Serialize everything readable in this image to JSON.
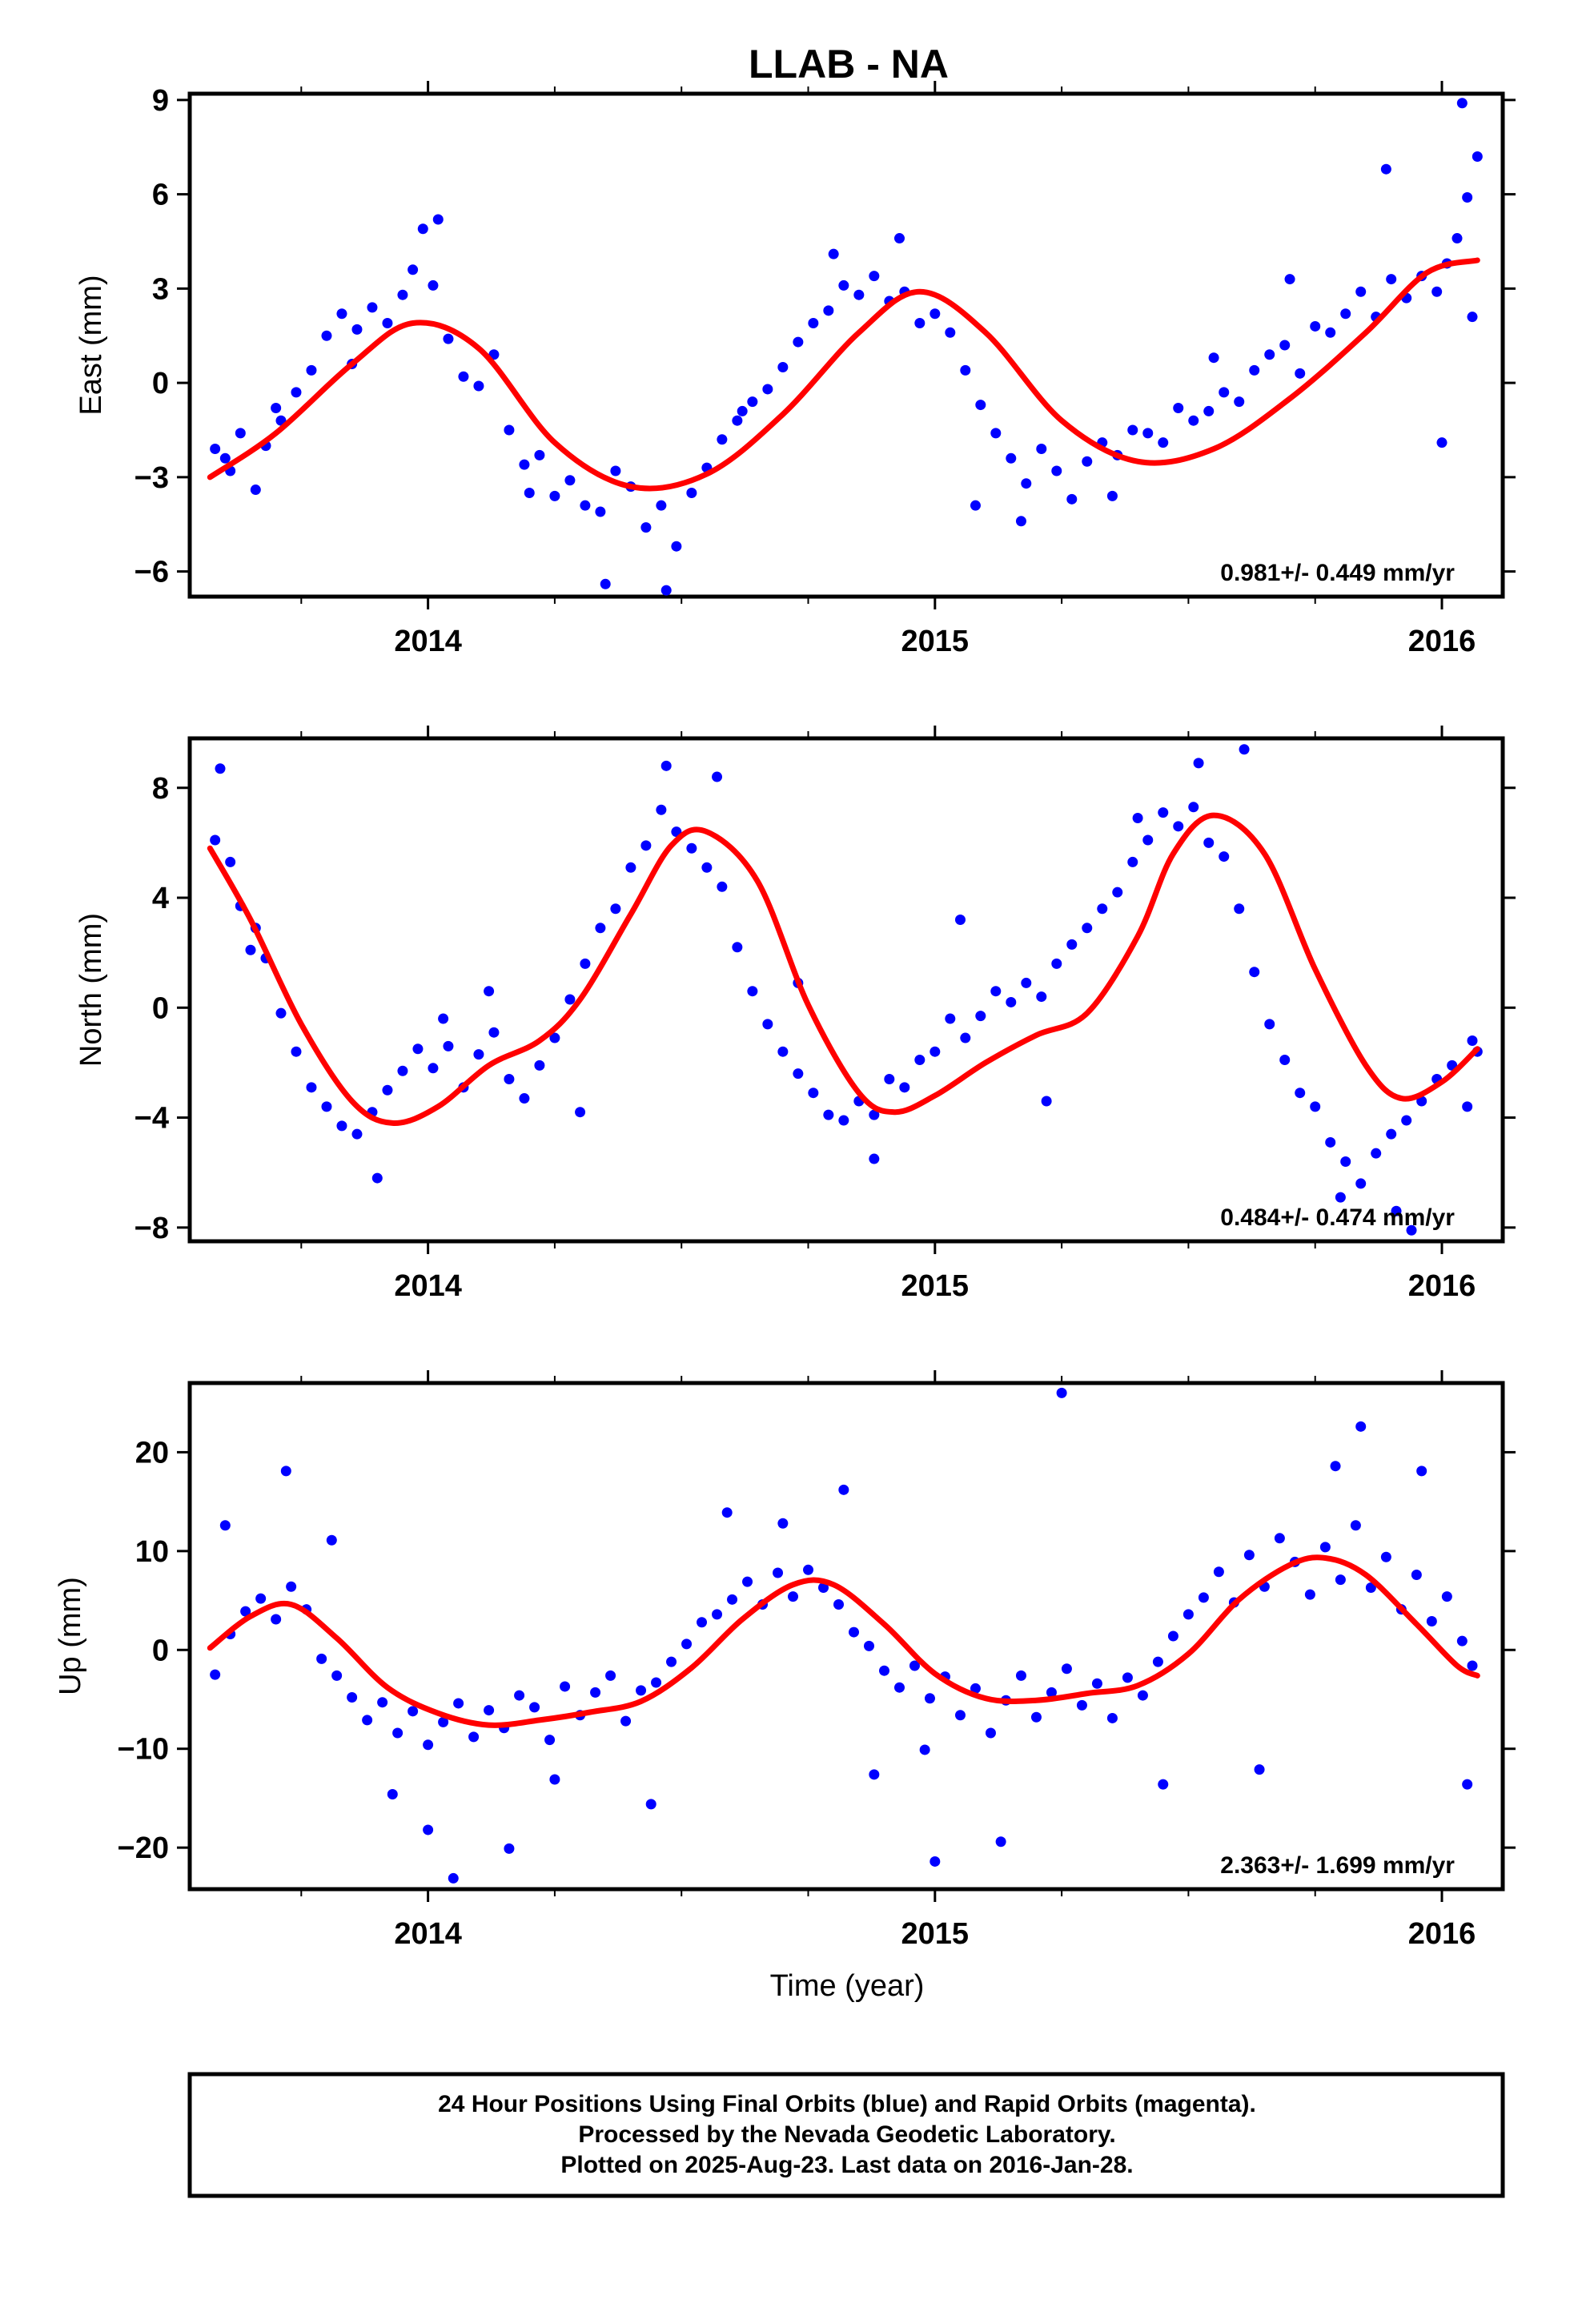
{
  "title": "LLAB - NA",
  "x_axis_label": "Time (year)",
  "footer": {
    "lines": [
      "24 Hour Positions Using Final Orbits (blue) and Rapid Orbits (magenta).",
      "Processed by the Nevada Geodetic Laboratory.",
      "Plotted on 2025-Aug-23. Last data on 2016-Jan-28."
    ]
  },
  "colors": {
    "points": "#0000ff",
    "fit": "#ff0000",
    "frame": "#000000"
  },
  "chart_data": [
    {
      "type": "scatter",
      "ylabel": "East (mm)",
      "xlim": [
        2013.53,
        2016.12
      ],
      "ylim": [
        -6.8,
        9.2
      ],
      "x_ticks": [
        2014,
        2015,
        2016
      ],
      "x_tick_labels": [
        "2014",
        "2015",
        "2016"
      ],
      "y_ticks": [
        -6,
        -3,
        0,
        3,
        6,
        9
      ],
      "y_tick_labels": [
        "−6",
        "−3",
        "0",
        "3",
        "6",
        "9"
      ],
      "rate_label": "0.981+/- 0.449 mm/yr",
      "series": [
        {
          "role": "points",
          "x": [
            2013.58,
            2013.61,
            2013.63,
            2013.66,
            2013.68,
            2013.71,
            2013.74,
            2013.77,
            2013.8,
            2013.83,
            2013.86,
            2013.89,
            2013.92,
            2013.95,
            2013.97,
            2013.99,
            2014.01,
            2014.04,
            2014.07,
            2014.1,
            2014.13,
            2014.16,
            2014.19,
            2014.22,
            2014.25,
            2014.28,
            2014.31,
            2014.34,
            2014.37,
            2014.4,
            2014.43,
            2014.46,
            2014.49,
            2014.52,
            2014.55,
            2014.58,
            2014.61,
            2014.64,
            2014.67,
            2014.7,
            2014.73,
            2014.76,
            2014.79,
            2014.82,
            2014.85,
            2014.88,
            2014.91,
            2014.94,
            2014.97,
            2015.0,
            2015.03,
            2015.06,
            2015.09,
            2015.12,
            2015.15,
            2015.18,
            2015.21,
            2015.24,
            2015.27,
            2015.3,
            2015.33,
            2015.36,
            2015.39,
            2015.42,
            2015.45,
            2015.48,
            2015.51,
            2015.54,
            2015.57,
            2015.6,
            2015.63,
            2015.66,
            2015.69,
            2015.72,
            2015.75,
            2015.78,
            2015.81,
            2015.84,
            2015.87,
            2015.9,
            2015.93,
            2015.96,
            2015.99,
            2016.01,
            2016.03,
            2016.05,
            2016.07,
            2013.6,
            2013.7,
            2013.85,
            2014.02,
            2014.2,
            2014.35,
            2014.47,
            2014.62,
            2014.8,
            2014.93,
            2015.08,
            2015.17,
            2015.35,
            2015.55,
            2015.7,
            2015.89,
            2016.0,
            2016.04,
            2016.06
          ],
          "y": [
            -2.1,
            -2.8,
            -1.6,
            -3.4,
            -2.0,
            -1.2,
            -0.3,
            0.4,
            1.5,
            2.2,
            1.7,
            2.4,
            1.9,
            2.8,
            3.6,
            4.9,
            3.1,
            1.4,
            0.2,
            -0.1,
            0.9,
            -1.5,
            -2.6,
            -2.3,
            -3.6,
            -3.1,
            -3.9,
            -4.1,
            -2.8,
            -3.3,
            -4.6,
            -3.9,
            -5.2,
            -3.5,
            -2.7,
            -1.8,
            -1.2,
            -0.6,
            -0.2,
            0.5,
            1.3,
            1.9,
            2.3,
            3.1,
            2.8,
            3.4,
            2.6,
            2.9,
            1.9,
            2.2,
            1.6,
            0.4,
            -0.7,
            -1.6,
            -2.4,
            -3.2,
            -2.1,
            -2.8,
            -3.7,
            -2.5,
            -1.9,
            -2.3,
            -1.5,
            -1.6,
            -1.9,
            -0.8,
            -1.2,
            -0.9,
            -0.3,
            -0.6,
            0.4,
            0.9,
            1.2,
            0.3,
            1.8,
            1.6,
            2.2,
            2.9,
            2.1,
            3.3,
            2.7,
            3.4,
            2.9,
            3.8,
            4.6,
            5.9,
            7.2,
            -2.4,
            -0.8,
            0.6,
            5.2,
            -3.5,
            -6.4,
            -6.6,
            -0.9,
            4.1,
            4.6,
            -3.9,
            -4.4,
            -3.6,
            0.8,
            3.3,
            6.8,
            -1.9,
            8.9,
            2.1
          ]
        },
        {
          "role": "fit",
          "x": [
            2013.57,
            2013.7,
            2013.85,
            2013.97,
            2014.1,
            2014.25,
            2014.4,
            2014.55,
            2014.7,
            2014.85,
            2014.97,
            2015.1,
            2015.25,
            2015.4,
            2015.55,
            2015.7,
            2015.85,
            2015.97,
            2016.07
          ],
          "y": [
            -3.0,
            -1.6,
            0.6,
            1.9,
            1.1,
            -1.9,
            -3.3,
            -2.9,
            -1.0,
            1.6,
            2.9,
            1.6,
            -1.2,
            -2.5,
            -2.1,
            -0.5,
            1.6,
            3.5,
            3.9
          ]
        }
      ]
    },
    {
      "type": "scatter",
      "ylabel": "North (mm)",
      "xlim": [
        2013.53,
        2016.12
      ],
      "ylim": [
        -8.5,
        9.8
      ],
      "x_ticks": [
        2014,
        2015,
        2016
      ],
      "x_tick_labels": [
        "2014",
        "2015",
        "2016"
      ],
      "y_ticks": [
        -8,
        -4,
        0,
        4,
        8
      ],
      "y_tick_labels": [
        "−8",
        "−4",
        "0",
        "4",
        "8"
      ],
      "rate_label": "0.484+/- 0.474 mm/yr",
      "series": [
        {
          "role": "points",
          "x": [
            2013.58,
            2013.61,
            2013.63,
            2013.66,
            2013.68,
            2013.71,
            2013.74,
            2013.77,
            2013.8,
            2013.83,
            2013.86,
            2013.89,
            2013.92,
            2013.95,
            2013.98,
            2014.01,
            2014.04,
            2014.07,
            2014.1,
            2014.13,
            2014.16,
            2014.19,
            2014.22,
            2014.25,
            2014.28,
            2014.31,
            2014.34,
            2014.37,
            2014.4,
            2014.43,
            2014.46,
            2014.49,
            2014.52,
            2014.55,
            2014.58,
            2014.61,
            2014.64,
            2014.67,
            2014.7,
            2014.73,
            2014.76,
            2014.79,
            2014.82,
            2014.85,
            2014.88,
            2014.91,
            2014.94,
            2014.97,
            2015.0,
            2015.03,
            2015.06,
            2015.09,
            2015.12,
            2015.15,
            2015.18,
            2015.21,
            2015.24,
            2015.27,
            2015.3,
            2015.33,
            2015.36,
            2015.39,
            2015.42,
            2015.45,
            2015.48,
            2015.51,
            2015.54,
            2015.57,
            2015.6,
            2015.63,
            2015.66,
            2015.69,
            2015.72,
            2015.75,
            2015.78,
            2015.81,
            2015.84,
            2015.87,
            2015.9,
            2015.93,
            2015.96,
            2015.99,
            2016.02,
            2016.05,
            2016.07,
            2013.59,
            2013.65,
            2013.9,
            2014.03,
            2014.12,
            2014.3,
            2014.47,
            2014.57,
            2014.73,
            2014.88,
            2015.05,
            2015.22,
            2015.4,
            2015.52,
            2015.61,
            2015.8,
            2015.91,
            2015.94,
            2016.06
          ],
          "y": [
            6.1,
            5.3,
            3.7,
            2.9,
            1.8,
            -0.2,
            -1.6,
            -2.9,
            -3.6,
            -4.3,
            -4.6,
            -3.8,
            -3.0,
            -2.3,
            -1.5,
            -2.2,
            -1.4,
            -2.9,
            -1.7,
            -0.9,
            -2.6,
            -3.3,
            -2.1,
            -1.1,
            0.3,
            1.6,
            2.9,
            3.6,
            5.1,
            5.9,
            7.2,
            6.4,
            5.8,
            5.1,
            4.4,
            2.2,
            0.6,
            -0.6,
            -1.6,
            -2.4,
            -3.1,
            -3.9,
            -4.1,
            -3.4,
            -3.9,
            -2.6,
            -2.9,
            -1.9,
            -1.6,
            -0.4,
            -1.1,
            -0.3,
            0.6,
            0.2,
            0.9,
            0.4,
            1.6,
            2.3,
            2.9,
            3.6,
            4.2,
            5.3,
            6.1,
            7.1,
            6.6,
            7.3,
            6.0,
            5.5,
            3.6,
            1.3,
            -0.6,
            -1.9,
            -3.1,
            -3.6,
            -4.9,
            -5.6,
            -6.4,
            -5.3,
            -4.6,
            -4.1,
            -3.4,
            -2.6,
            -2.1,
            -3.6,
            -1.6,
            8.7,
            2.1,
            -6.2,
            -0.4,
            0.6,
            -3.8,
            8.8,
            8.4,
            0.9,
            -5.5,
            3.2,
            -3.4,
            6.9,
            8.9,
            9.4,
            -6.9,
            -7.4,
            -8.1,
            -1.2
          ]
        },
        {
          "role": "fit",
          "x": [
            2013.57,
            2013.65,
            2013.75,
            2013.85,
            2013.93,
            2014.02,
            2014.12,
            2014.22,
            2014.3,
            2014.4,
            2014.48,
            2014.55,
            2014.65,
            2014.75,
            2014.85,
            2014.92,
            2015.0,
            2015.1,
            2015.2,
            2015.3,
            2015.4,
            2015.47,
            2015.55,
            2015.65,
            2015.75,
            2015.85,
            2015.92,
            2016.0,
            2016.07
          ],
          "y": [
            5.8,
            3.2,
            -0.6,
            -3.4,
            -4.2,
            -3.6,
            -2.1,
            -1.2,
            0.3,
            3.4,
            5.9,
            6.4,
            4.6,
            0.1,
            -3.1,
            -3.8,
            -3.2,
            -2.0,
            -1.0,
            -0.2,
            2.6,
            5.6,
            7.0,
            5.6,
            1.4,
            -2.1,
            -3.3,
            -2.7,
            -1.5
          ]
        }
      ]
    },
    {
      "type": "scatter",
      "ylabel": "Up (mm)",
      "xlim": [
        2013.53,
        2016.12
      ],
      "ylim": [
        -24.2,
        27.0
      ],
      "x_ticks": [
        2014,
        2015,
        2016
      ],
      "x_tick_labels": [
        "2014",
        "2015",
        "2016"
      ],
      "y_ticks": [
        -20,
        -10,
        0,
        10,
        20
      ],
      "y_tick_labels": [
        "−20",
        "−10",
        "0",
        "10",
        "20"
      ],
      "rate_label": "2.363+/- 1.699 mm/yr",
      "series": [
        {
          "role": "points",
          "x": [
            2013.58,
            2013.61,
            2013.64,
            2013.67,
            2013.7,
            2013.73,
            2013.76,
            2013.79,
            2013.82,
            2013.85,
            2013.88,
            2013.91,
            2013.94,
            2013.97,
            2014.0,
            2014.03,
            2014.06,
            2014.09,
            2014.12,
            2014.15,
            2014.18,
            2014.21,
            2014.24,
            2014.27,
            2014.3,
            2014.33,
            2014.36,
            2014.39,
            2014.42,
            2014.45,
            2014.48,
            2014.51,
            2014.54,
            2014.57,
            2014.6,
            2014.63,
            2014.66,
            2014.69,
            2014.72,
            2014.75,
            2014.78,
            2014.81,
            2014.84,
            2014.87,
            2014.9,
            2014.93,
            2014.96,
            2014.99,
            2015.02,
            2015.05,
            2015.08,
            2015.11,
            2015.14,
            2015.17,
            2015.2,
            2015.23,
            2015.26,
            2015.29,
            2015.32,
            2015.35,
            2015.38,
            2015.41,
            2015.44,
            2015.47,
            2015.5,
            2015.53,
            2015.56,
            2015.59,
            2015.62,
            2015.65,
            2015.68,
            2015.71,
            2015.74,
            2015.77,
            2015.8,
            2015.83,
            2015.86,
            2015.89,
            2015.92,
            2015.95,
            2015.98,
            2016.01,
            2016.04,
            2016.06,
            2013.6,
            2013.72,
            2013.81,
            2013.93,
            2014.0,
            2014.05,
            2014.16,
            2014.25,
            2014.44,
            2014.59,
            2014.7,
            2014.82,
            2014.88,
            2014.98,
            2015.0,
            2015.13,
            2015.25,
            2015.45,
            2015.64,
            2015.79,
            2015.84,
            2015.96,
            2016.05
          ],
          "y": [
            -2.5,
            1.6,
            3.9,
            5.2,
            3.1,
            6.4,
            4.1,
            -0.9,
            -2.6,
            -4.8,
            -7.1,
            -5.3,
            -8.4,
            -6.2,
            -9.6,
            -7.3,
            -5.4,
            -8.8,
            -6.1,
            -7.9,
            -4.6,
            -5.8,
            -9.1,
            -3.7,
            -6.6,
            -4.3,
            -2.6,
            -7.2,
            -4.1,
            -3.3,
            -1.2,
            0.6,
            2.8,
            3.6,
            5.1,
            6.9,
            4.6,
            7.8,
            5.4,
            8.1,
            6.3,
            4.6,
            1.8,
            0.4,
            -2.1,
            -3.8,
            -1.6,
            -4.9,
            -2.7,
            -6.6,
            -3.9,
            -8.4,
            -5.1,
            -2.6,
            -6.8,
            -4.3,
            -1.9,
            -5.6,
            -3.4,
            -6.9,
            -2.8,
            -4.6,
            -1.2,
            1.4,
            3.6,
            5.3,
            7.9,
            4.8,
            9.6,
            6.4,
            11.3,
            8.9,
            5.6,
            10.4,
            7.1,
            12.6,
            6.3,
            9.4,
            4.1,
            7.6,
            2.9,
            5.4,
            0.9,
            -1.6,
            12.6,
            18.1,
            11.1,
            -14.6,
            -18.2,
            -23.1,
            -20.1,
            -13.1,
            -15.6,
            13.9,
            12.8,
            16.2,
            -12.6,
            -10.1,
            -21.4,
            -19.4,
            26.0,
            -13.6,
            -12.1,
            18.6,
            22.6,
            18.1,
            -13.6
          ]
        },
        {
          "role": "fit",
          "x": [
            2013.57,
            2013.65,
            2013.73,
            2013.82,
            2013.92,
            2014.02,
            2014.12,
            2014.22,
            2014.32,
            2014.42,
            2014.52,
            2014.62,
            2014.72,
            2014.8,
            2014.9,
            2015.0,
            2015.1,
            2015.2,
            2015.3,
            2015.4,
            2015.5,
            2015.6,
            2015.7,
            2015.77,
            2015.85,
            2015.95,
            2016.03,
            2016.07
          ],
          "y": [
            0.2,
            3.4,
            4.6,
            1.2,
            -3.8,
            -6.4,
            -7.6,
            -7.1,
            -6.3,
            -5.2,
            -1.8,
            3.1,
            6.6,
            6.6,
            2.6,
            -2.4,
            -4.9,
            -5.1,
            -4.4,
            -3.6,
            -0.4,
            5.1,
            8.6,
            9.3,
            7.6,
            2.6,
            -1.6,
            -2.6
          ]
        }
      ]
    }
  ]
}
